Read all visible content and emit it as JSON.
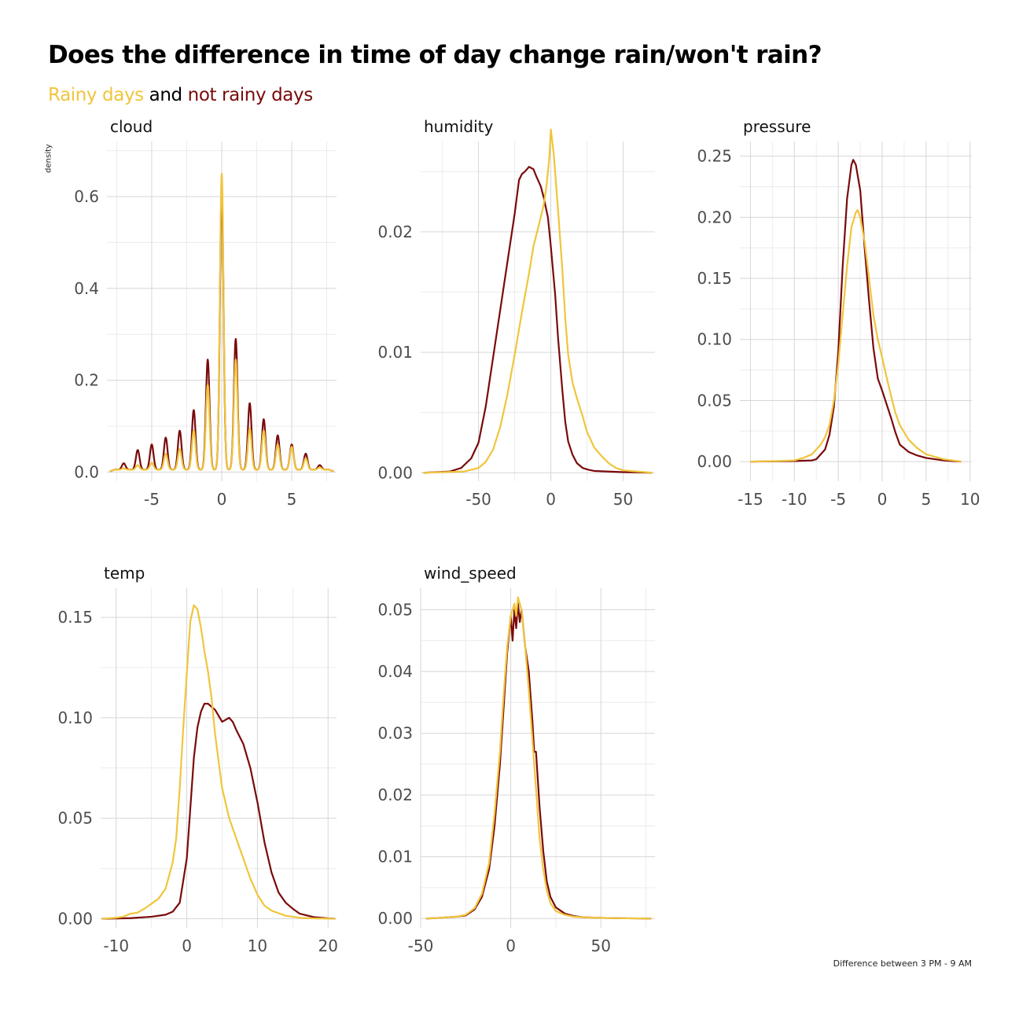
{
  "title": "Does the difference in time of day change rain/won't rain?",
  "subtitle": {
    "rainy": "Rainy days",
    "and": "and",
    "not_rainy": "not rainy days"
  },
  "ylabel": "density",
  "caption": "Difference between 3 PM - 9 AM",
  "colors": {
    "rainy": "#f0c53c",
    "not_rainy": "#7a0a0a"
  },
  "chart_data": [
    {
      "type": "line",
      "title": "cloud",
      "xlim": [
        -8.2,
        8.2
      ],
      "ylim": [
        -0.02,
        0.72
      ],
      "xticks": [
        -5,
        0,
        5
      ],
      "xtick_labels": [
        "-5",
        "0",
        "5"
      ],
      "yticks": [
        0,
        0.2,
        0.4,
        0.6
      ],
      "ytick_labels": [
        "0.0",
        "0.2",
        "0.4",
        "0.6"
      ],
      "series": [
        {
          "key": "not_rainy",
          "spike_heights": {
            "-7": 0.019,
            "-6": 0.048,
            "-5": 0.06,
            "-4": 0.075,
            "-3": 0.09,
            "-2": 0.135,
            "-1": 0.245,
            "0": 0.615,
            "1": 0.29,
            "2": 0.15,
            "3": 0.115,
            "4": 0.08,
            "5": 0.06,
            "6": 0.04,
            "7": 0.015
          },
          "baseline": 0.005
        },
        {
          "key": "rainy",
          "spike_heights": {
            "-7": 0.008,
            "-6": 0.015,
            "-5": 0.02,
            "-4": 0.04,
            "-3": 0.05,
            "-2": 0.09,
            "-1": 0.19,
            "0": 0.65,
            "1": 0.245,
            "2": 0.095,
            "3": 0.09,
            "4": 0.06,
            "5": 0.055,
            "6": 0.03,
            "7": 0.01
          },
          "baseline": 0.005
        }
      ]
    },
    {
      "type": "line",
      "title": "humidity",
      "xlim": [
        -90,
        72
      ],
      "ylim": [
        -0.0007,
        0.0275
      ],
      "xticks": [
        -50,
        0,
        50
      ],
      "xtick_labels": [
        "-50",
        "0",
        "50"
      ],
      "yticks": [
        0,
        0.01,
        0.02
      ],
      "ytick_labels": [
        "0.00",
        "0.01",
        "0.02"
      ],
      "series": [
        {
          "key": "not_rainy",
          "x": [
            -88,
            -70,
            -62,
            -55,
            -50,
            -45,
            -40,
            -35,
            -30,
            -25,
            -22,
            -20,
            -18,
            -15,
            -12,
            -10,
            -7,
            -5,
            -2,
            0,
            3,
            5,
            8,
            10,
            12,
            15,
            18,
            22,
            26,
            30,
            40,
            50,
            60,
            70
          ],
          "y": [
            0,
            0.0001,
            0.0004,
            0.0012,
            0.0025,
            0.0055,
            0.0095,
            0.0135,
            0.0175,
            0.0215,
            0.0243,
            0.0248,
            0.025,
            0.0254,
            0.0252,
            0.0246,
            0.0238,
            0.0229,
            0.0212,
            0.0188,
            0.0148,
            0.0112,
            0.0068,
            0.0042,
            0.0026,
            0.0015,
            0.0008,
            0.0004,
            0.00025,
            0.00015,
            0.0001,
            5e-05,
            3e-05,
            0
          ]
        },
        {
          "key": "rainy",
          "x": [
            -88,
            -60,
            -50,
            -45,
            -40,
            -35,
            -30,
            -25,
            -20,
            -15,
            -12,
            -8,
            -5,
            -3,
            -1,
            0,
            2,
            5,
            8,
            10,
            12,
            15,
            18,
            22,
            25,
            30,
            35,
            40,
            45,
            50,
            60,
            70
          ],
          "y": [
            0,
            0.0001,
            0.0004,
            0.0009,
            0.0019,
            0.0038,
            0.0065,
            0.0098,
            0.0133,
            0.0166,
            0.0188,
            0.0207,
            0.0222,
            0.0238,
            0.0262,
            0.0285,
            0.0265,
            0.0218,
            0.0168,
            0.0128,
            0.0098,
            0.0075,
            0.0062,
            0.0047,
            0.0034,
            0.0021,
            0.0014,
            0.0008,
            0.0004,
            0.0002,
            0.0001,
            0
          ]
        }
      ]
    },
    {
      "type": "line",
      "title": "pressure",
      "xlim": [
        -16.2,
        10.2
      ],
      "ylim": [
        -0.016,
        0.262
      ],
      "xticks": [
        -15,
        -10,
        -5,
        0,
        5,
        10
      ],
      "xtick_labels": [
        "-15",
        "-10",
        "-5",
        "0",
        "5",
        "10"
      ],
      "yticks": [
        0,
        0.05,
        0.1,
        0.15,
        0.2,
        0.25
      ],
      "ytick_labels": [
        "0.00",
        "0.05",
        "0.10",
        "0.15",
        "0.20",
        "0.25"
      ],
      "series": [
        {
          "key": "not_rainy",
          "x": [
            -15,
            -10,
            -8,
            -7.5,
            -6.5,
            -6,
            -5.5,
            -5,
            -4.5,
            -4,
            -3.5,
            -3.3,
            -3,
            -2.5,
            -2,
            -1.5,
            -1,
            -0.5,
            0,
            0.5,
            1,
            1.5,
            2,
            3,
            4,
            5,
            6,
            7,
            8,
            9
          ],
          "y": [
            0,
            0.0005,
            0.001,
            0.002,
            0.01,
            0.022,
            0.045,
            0.09,
            0.16,
            0.215,
            0.243,
            0.247,
            0.243,
            0.222,
            0.175,
            0.132,
            0.093,
            0.068,
            0.058,
            0.047,
            0.036,
            0.024,
            0.014,
            0.008,
            0.005,
            0.003,
            0.002,
            0.001,
            0.0005,
            0
          ]
        },
        {
          "key": "rainy",
          "x": [
            -15,
            -12,
            -10,
            -9,
            -8,
            -7,
            -6.5,
            -6,
            -5.5,
            -5,
            -4.5,
            -4,
            -3.5,
            -3,
            -2.8,
            -2.5,
            -2,
            -1.5,
            -1,
            -0.5,
            0,
            0.5,
            1,
            1.5,
            2,
            3,
            4,
            5,
            6,
            7,
            8,
            9
          ],
          "y": [
            0,
            0.0005,
            0.001,
            0.003,
            0.006,
            0.014,
            0.02,
            0.03,
            0.05,
            0.08,
            0.12,
            0.16,
            0.192,
            0.204,
            0.206,
            0.2,
            0.18,
            0.15,
            0.12,
            0.1,
            0.085,
            0.069,
            0.054,
            0.04,
            0.03,
            0.018,
            0.011,
            0.006,
            0.004,
            0.002,
            0.001,
            0
          ]
        }
      ]
    },
    {
      "type": "line",
      "title": "temp",
      "xlim": [
        -12.2,
        21.2
      ],
      "ylim": [
        -0.0045,
        0.1645
      ],
      "xticks": [
        -10,
        0,
        10,
        20
      ],
      "xtick_labels": [
        "-10",
        "0",
        "10",
        "20"
      ],
      "yticks": [
        0,
        0.05,
        0.1,
        0.15
      ],
      "ytick_labels": [
        "0.00",
        "0.05",
        "0.10",
        "0.15"
      ],
      "series": [
        {
          "key": "not_rainy",
          "x": [
            -12,
            -8,
            -5,
            -3,
            -2,
            -1,
            0,
            0.5,
            1,
            1.5,
            2,
            2.5,
            3,
            4,
            5,
            5.5,
            6,
            6.5,
            7,
            8,
            9,
            10,
            11,
            12,
            13,
            14,
            15,
            16,
            18,
            20,
            21
          ],
          "y": [
            0,
            0.0003,
            0.001,
            0.002,
            0.0035,
            0.008,
            0.03,
            0.055,
            0.08,
            0.095,
            0.103,
            0.107,
            0.107,
            0.104,
            0.098,
            0.099,
            0.1,
            0.098,
            0.094,
            0.087,
            0.075,
            0.058,
            0.038,
            0.023,
            0.013,
            0.008,
            0.005,
            0.0025,
            0.0008,
            0.0002,
            0
          ]
        },
        {
          "key": "rainy",
          "x": [
            -12,
            -10,
            -9,
            -8,
            -7,
            -6,
            -5,
            -4,
            -3,
            -2,
            -1.5,
            -1,
            -0.5,
            0,
            0.5,
            1,
            1.5,
            2,
            2.5,
            3,
            3.5,
            4,
            5,
            6,
            7,
            8,
            9,
            10,
            11,
            12,
            14,
            16,
            18,
            21
          ],
          "y": [
            0,
            0.0005,
            0.001,
            0.0025,
            0.003,
            0.005,
            0.0075,
            0.01,
            0.015,
            0.028,
            0.04,
            0.065,
            0.095,
            0.122,
            0.148,
            0.156,
            0.154,
            0.145,
            0.133,
            0.123,
            0.11,
            0.092,
            0.065,
            0.05,
            0.04,
            0.03,
            0.02,
            0.012,
            0.0065,
            0.004,
            0.0015,
            0.0005,
            0.0002,
            0
          ]
        }
      ]
    },
    {
      "type": "line",
      "title": "wind_speed",
      "xlim": [
        -50,
        80
      ],
      "ylim": [
        -0.0015,
        0.0535
      ],
      "xticks": [
        -50,
        0,
        50
      ],
      "xtick_labels": [
        "-50",
        "0",
        "50"
      ],
      "yticks": [
        0,
        0.01,
        0.02,
        0.03,
        0.04,
        0.05
      ],
      "ytick_labels": [
        "0.00",
        "0.01",
        "0.02",
        "0.03",
        "0.04",
        "0.05"
      ],
      "series": [
        {
          "key": "not_rainy",
          "x": [
            -47,
            -40,
            -30,
            -25,
            -20,
            -16,
            -12,
            -9,
            -6,
            -4,
            -2,
            0,
            1,
            2,
            3,
            4,
            5,
            6,
            7,
            8,
            10,
            12,
            13,
            14,
            16,
            18,
            20,
            22,
            25,
            30,
            35,
            40,
            50,
            60,
            70,
            78
          ],
          "y": [
            0,
            0.0001,
            0.0003,
            0.0005,
            0.0015,
            0.0035,
            0.008,
            0.015,
            0.025,
            0.034,
            0.043,
            0.049,
            0.045,
            0.05,
            0.047,
            0.051,
            0.048,
            0.05,
            0.047,
            0.044,
            0.04,
            0.032,
            0.027,
            0.027,
            0.018,
            0.011,
            0.006,
            0.0035,
            0.0018,
            0.0008,
            0.0004,
            0.0002,
            0.0001,
            5e-05,
            2e-05,
            0
          ]
        },
        {
          "key": "rainy",
          "x": [
            -47,
            -40,
            -30,
            -25,
            -20,
            -16,
            -12,
            -9,
            -6,
            -4,
            -2,
            0,
            2,
            3,
            4,
            5,
            6,
            8,
            10,
            12,
            14,
            16,
            18,
            20,
            22,
            25,
            30,
            35,
            40,
            50,
            60,
            70,
            78
          ],
          "y": [
            0,
            0.0001,
            0.0003,
            0.0006,
            0.0017,
            0.004,
            0.009,
            0.017,
            0.027,
            0.036,
            0.044,
            0.049,
            0.051,
            0.049,
            0.052,
            0.051,
            0.05,
            0.044,
            0.037,
            0.029,
            0.021,
            0.013,
            0.008,
            0.0045,
            0.0025,
            0.0012,
            0.0006,
            0.0003,
            0.0002,
            0.0001,
            5e-05,
            2e-05,
            0
          ]
        }
      ]
    }
  ]
}
